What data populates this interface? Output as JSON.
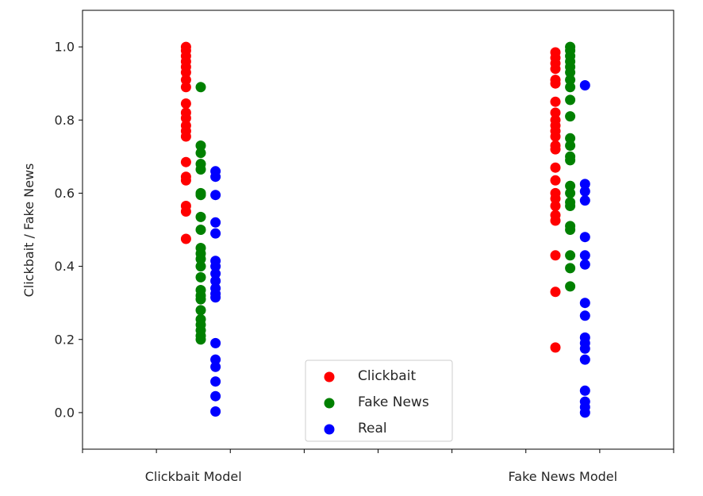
{
  "chart_data": {
    "type": "scatter",
    "title": "",
    "xlabel": "",
    "ylabel": "Clickbait / Fake News",
    "ylim": [
      -0.1,
      1.1
    ],
    "xlim": [
      0,
      8
    ],
    "yticks": [
      "0.0",
      "0.2",
      "0.4",
      "0.6",
      "0.8",
      "1.0"
    ],
    "xtick_positions": [
      1,
      2,
      3,
      4,
      5,
      6,
      7,
      8
    ],
    "xtick_labels": [
      {
        "pos": 1.5,
        "label": "Clickbait Model"
      },
      {
        "pos": 6.5,
        "label": "Fake News Model"
      }
    ],
    "grid": false,
    "legend_position": "lower-center",
    "series": [
      {
        "name": "Clickbait",
        "color": "#ff0000",
        "points": [
          [
            1.4,
            1.0
          ],
          [
            1.4,
            0.99
          ],
          [
            1.4,
            0.975
          ],
          [
            1.4,
            0.96
          ],
          [
            1.4,
            0.945
          ],
          [
            1.4,
            0.93
          ],
          [
            1.4,
            0.91
          ],
          [
            1.4,
            0.89
          ],
          [
            1.4,
            0.845
          ],
          [
            1.4,
            0.82
          ],
          [
            1.4,
            0.805
          ],
          [
            1.4,
            0.785
          ],
          [
            1.4,
            0.77
          ],
          [
            1.4,
            0.755
          ],
          [
            1.4,
            0.685
          ],
          [
            1.4,
            0.645
          ],
          [
            1.4,
            0.635
          ],
          [
            1.4,
            0.565
          ],
          [
            1.4,
            0.55
          ],
          [
            1.4,
            0.475
          ],
          [
            6.4,
            0.985
          ],
          [
            6.4,
            0.97
          ],
          [
            6.4,
            0.955
          ],
          [
            6.4,
            0.94
          ],
          [
            6.4,
            0.91
          ],
          [
            6.4,
            0.9
          ],
          [
            6.4,
            0.85
          ],
          [
            6.4,
            0.82
          ],
          [
            6.4,
            0.8
          ],
          [
            6.4,
            0.785
          ],
          [
            6.4,
            0.77
          ],
          [
            6.4,
            0.755
          ],
          [
            6.4,
            0.73
          ],
          [
            6.4,
            0.72
          ],
          [
            6.4,
            0.67
          ],
          [
            6.4,
            0.635
          ],
          [
            6.4,
            0.6
          ],
          [
            6.4,
            0.585
          ],
          [
            6.4,
            0.565
          ],
          [
            6.4,
            0.54
          ],
          [
            6.4,
            0.525
          ],
          [
            6.4,
            0.43
          ],
          [
            6.4,
            0.33
          ],
          [
            6.4,
            0.178
          ]
        ]
      },
      {
        "name": "Fake News",
        "color": "#008000",
        "points": [
          [
            1.6,
            0.89
          ],
          [
            1.6,
            0.73
          ],
          [
            1.6,
            0.71
          ],
          [
            1.6,
            0.68
          ],
          [
            1.6,
            0.665
          ],
          [
            1.6,
            0.6
          ],
          [
            1.6,
            0.595
          ],
          [
            1.6,
            0.535
          ],
          [
            1.6,
            0.5
          ],
          [
            1.6,
            0.45
          ],
          [
            1.6,
            0.435
          ],
          [
            1.6,
            0.42
          ],
          [
            1.6,
            0.4
          ],
          [
            1.6,
            0.37
          ],
          [
            1.6,
            0.335
          ],
          [
            1.6,
            0.32
          ],
          [
            1.6,
            0.31
          ],
          [
            1.6,
            0.28
          ],
          [
            1.6,
            0.255
          ],
          [
            1.6,
            0.24
          ],
          [
            1.6,
            0.225
          ],
          [
            1.6,
            0.21
          ],
          [
            1.6,
            0.2
          ],
          [
            6.6,
            1.0
          ],
          [
            6.6,
            0.99
          ],
          [
            6.6,
            0.975
          ],
          [
            6.6,
            0.96
          ],
          [
            6.6,
            0.945
          ],
          [
            6.6,
            0.93
          ],
          [
            6.6,
            0.91
          ],
          [
            6.6,
            0.89
          ],
          [
            6.6,
            0.855
          ],
          [
            6.6,
            0.81
          ],
          [
            6.6,
            0.75
          ],
          [
            6.6,
            0.73
          ],
          [
            6.6,
            0.7
          ],
          [
            6.6,
            0.69
          ],
          [
            6.6,
            0.62
          ],
          [
            6.6,
            0.6
          ],
          [
            6.6,
            0.575
          ],
          [
            6.6,
            0.565
          ],
          [
            6.6,
            0.51
          ],
          [
            6.6,
            0.5
          ],
          [
            6.6,
            0.43
          ],
          [
            6.6,
            0.395
          ],
          [
            6.6,
            0.345
          ]
        ]
      },
      {
        "name": "Real",
        "color": "#0000ff",
        "points": [
          [
            1.8,
            0.66
          ],
          [
            1.8,
            0.645
          ],
          [
            1.8,
            0.595
          ],
          [
            1.8,
            0.52
          ],
          [
            1.8,
            0.49
          ],
          [
            1.8,
            0.415
          ],
          [
            1.8,
            0.4
          ],
          [
            1.8,
            0.38
          ],
          [
            1.8,
            0.36
          ],
          [
            1.8,
            0.34
          ],
          [
            1.8,
            0.325
          ],
          [
            1.8,
            0.315
          ],
          [
            1.8,
            0.19
          ],
          [
            1.8,
            0.145
          ],
          [
            1.8,
            0.125
          ],
          [
            1.8,
            0.085
          ],
          [
            1.8,
            0.045
          ],
          [
            1.8,
            0.003
          ],
          [
            6.8,
            0.895
          ],
          [
            6.8,
            0.625
          ],
          [
            6.8,
            0.605
          ],
          [
            6.8,
            0.58
          ],
          [
            6.8,
            0.48
          ],
          [
            6.8,
            0.43
          ],
          [
            6.8,
            0.405
          ],
          [
            6.8,
            0.3
          ],
          [
            6.8,
            0.265
          ],
          [
            6.8,
            0.205
          ],
          [
            6.8,
            0.19
          ],
          [
            6.8,
            0.175
          ],
          [
            6.8,
            0.145
          ],
          [
            6.8,
            0.06
          ],
          [
            6.8,
            0.03
          ],
          [
            6.8,
            0.015
          ],
          [
            6.8,
            0.0
          ]
        ]
      }
    ]
  }
}
